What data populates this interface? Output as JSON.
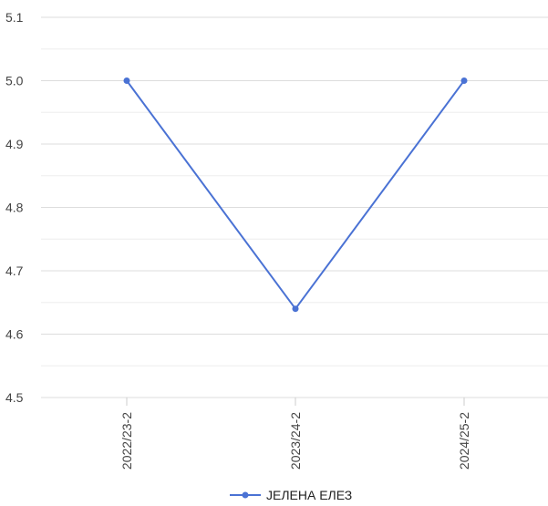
{
  "chart_data": {
    "type": "line",
    "title": "",
    "xlabel": "",
    "ylabel": "",
    "categories": [
      "2022/23-2",
      "2023/24-2",
      "2024/25-2"
    ],
    "series": [
      {
        "name": "ЈЕЛЕНА ЕЛЕЗ",
        "values": [
          5.0,
          4.64,
          5.0
        ]
      }
    ],
    "ylim": [
      4.5,
      5.1
    ],
    "yticks": [
      "4.5",
      "4.6",
      "4.7",
      "4.8",
      "4.9",
      "5.0",
      "5.1"
    ],
    "grid": true,
    "legend_position": "bottom",
    "colors": {
      "series": "#4a72d4",
      "major_grid": "#dddddd",
      "minor_grid": "#eeeeee",
      "tick_text": "#444444"
    }
  }
}
